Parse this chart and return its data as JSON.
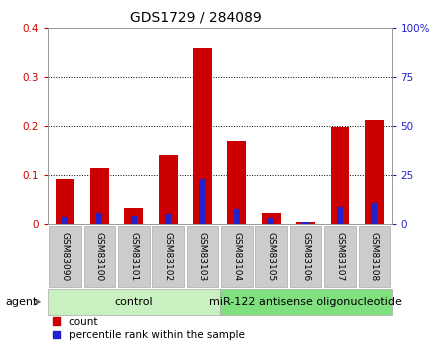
{
  "title": "GDS1729 / 284089",
  "samples": [
    "GSM83090",
    "GSM83100",
    "GSM83101",
    "GSM83102",
    "GSM83103",
    "GSM83104",
    "GSM83105",
    "GSM83106",
    "GSM83107",
    "GSM83108"
  ],
  "count_values": [
    0.093,
    0.115,
    0.033,
    0.14,
    0.358,
    0.17,
    0.022,
    0.005,
    0.197,
    0.212
  ],
  "percentile_values": [
    3.5,
    5.5,
    4.0,
    5.0,
    23.0,
    8.0,
    3.0,
    1.0,
    9.0,
    11.0
  ],
  "count_color": "#cc0000",
  "percentile_color": "#2222cc",
  "left_ylim": [
    0,
    0.4
  ],
  "right_ylim": [
    0,
    100
  ],
  "left_yticks": [
    0,
    0.1,
    0.2,
    0.3,
    0.4
  ],
  "right_yticks": [
    0,
    25,
    50,
    75,
    100
  ],
  "left_ytick_labels": [
    "0",
    "0.1",
    "0.2",
    "0.3",
    "0.4"
  ],
  "right_ytick_labels": [
    "0",
    "25",
    "50",
    "75",
    "100%"
  ],
  "groups": [
    {
      "label": "control",
      "start": 0,
      "end": 5,
      "color": "#c8f0c0"
    },
    {
      "label": "miR-122 antisense oligonucleotide",
      "start": 5,
      "end": 10,
      "color": "#80e080"
    }
  ],
  "agent_label": "agent",
  "legend_count": "count",
  "legend_percentile": "percentile rank within the sample",
  "background_color": "#ffffff",
  "tick_label_bg": "#cccccc",
  "grid_color": "#000000",
  "title_fontsize": 10,
  "axis_fontsize": 7.5,
  "tick_fontsize": 6.5,
  "legend_fontsize": 7.5,
  "group_fontsize": 8
}
